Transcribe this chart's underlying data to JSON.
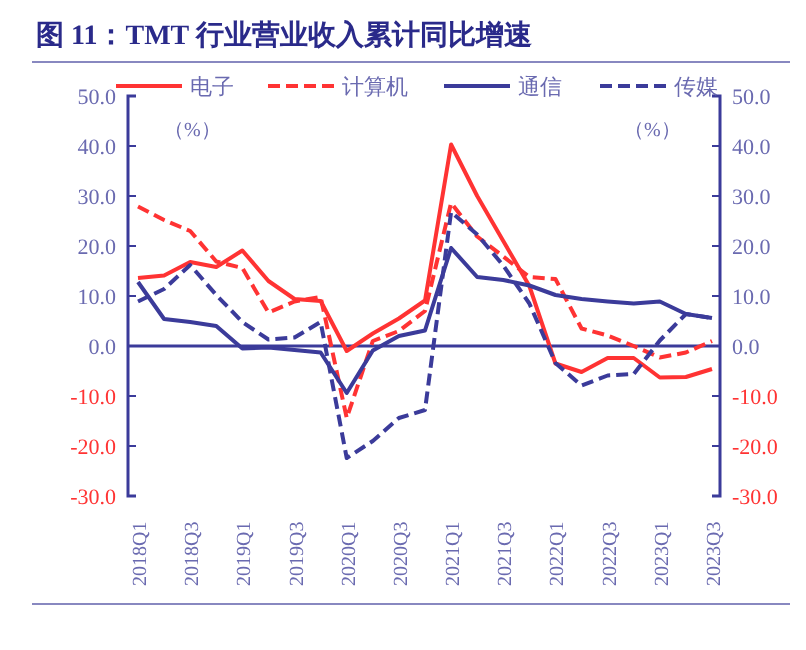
{
  "chart_data": {
    "type": "line",
    "title": "图 11：TMT 行业营业收入累计同比增速",
    "ylabel": "（%）",
    "y2label": "（%）",
    "legend": "top",
    "grid": false,
    "ref_lines": [
      {
        "axis": "y",
        "value": 0,
        "color": "#3b3b9a"
      }
    ],
    "categories": [
      "2018Q1",
      null,
      "2018Q3",
      null,
      "2019Q1",
      null,
      "2019Q3",
      null,
      "2020Q1",
      null,
      "2020Q3",
      null,
      "2021Q1",
      null,
      "2021Q3",
      null,
      "2022Q1",
      null,
      "2022Q3",
      null,
      "2023Q1",
      null,
      "2023Q3"
    ],
    "series": [
      {
        "name": "电子",
        "color": "#ff3333",
        "line_style": "solid",
        "values": [
          13.6,
          14.1,
          16.8,
          15.8,
          19.1,
          13,
          9.4,
          9,
          -1,
          2.5,
          5.5,
          9.1,
          40.3,
          30,
          21,
          12,
          -3.5,
          -5.2,
          -2.4,
          -2.4,
          -6.3,
          -6.2,
          -4.6
        ]
      },
      {
        "name": "计算机",
        "color": "#ff3333",
        "line_style": "dashed",
        "values": [
          27.9,
          25.2,
          23,
          16.9,
          15.6,
          6.7,
          8.9,
          9.8,
          -14.4,
          1,
          3,
          7,
          28.6,
          21.9,
          17.9,
          13.8,
          13.4,
          3.5,
          2.1,
          0,
          -2.3,
          -1.3,
          1
        ]
      },
      {
        "name": "通信",
        "color": "#3b3b9a",
        "line_style": "solid",
        "values": [
          12.8,
          5.4,
          4.8,
          4,
          -0.5,
          -0.3,
          -0.8,
          -1.3,
          -9.4,
          -0.9,
          2,
          3.1,
          19.6,
          13.8,
          13.2,
          12.1,
          10.2,
          9.4,
          8.9,
          8.5,
          8.9,
          6.4,
          5.6
        ]
      },
      {
        "name": "传媒",
        "color": "#3b3b9a",
        "line_style": "dashed",
        "values": [
          8.9,
          11.4,
          16.2,
          10.2,
          4.8,
          1.3,
          1.7,
          4.8,
          -22.4,
          -19,
          -14.4,
          -12.8,
          26.8,
          22.3,
          16.1,
          8.5,
          -3.4,
          -7.9,
          -5.9,
          -5.6,
          1.1,
          6.4,
          5.6
        ]
      }
    ],
    "ylim": [
      -30,
      50
    ],
    "yticks": [
      {
        "value": -30,
        "label": "-30.0"
      },
      {
        "value": -20,
        "label": "-20.0"
      },
      {
        "value": -10,
        "label": "-10.0"
      },
      {
        "value": 0,
        "label": "0.0"
      },
      {
        "value": 10,
        "label": "10.0"
      },
      {
        "value": 20,
        "label": "20.0"
      },
      {
        "value": 30,
        "label": "30.0"
      },
      {
        "value": 40,
        "label": "40.0"
      },
      {
        "value": 50,
        "label": "50.0"
      }
    ],
    "y2lim": [
      -30,
      50
    ],
    "y2ticks": [
      {
        "value": -30,
        "label": "-30.0"
      },
      {
        "value": -20,
        "label": "-20.0"
      },
      {
        "value": -10,
        "label": "-10.0"
      },
      {
        "value": 0,
        "label": "0.0"
      },
      {
        "value": 10,
        "label": "10.0"
      },
      {
        "value": 20,
        "label": "20.0"
      },
      {
        "value": 30,
        "label": "30.0"
      },
      {
        "value": 40,
        "label": "40.0"
      },
      {
        "value": 50,
        "label": "50.0"
      }
    ]
  }
}
